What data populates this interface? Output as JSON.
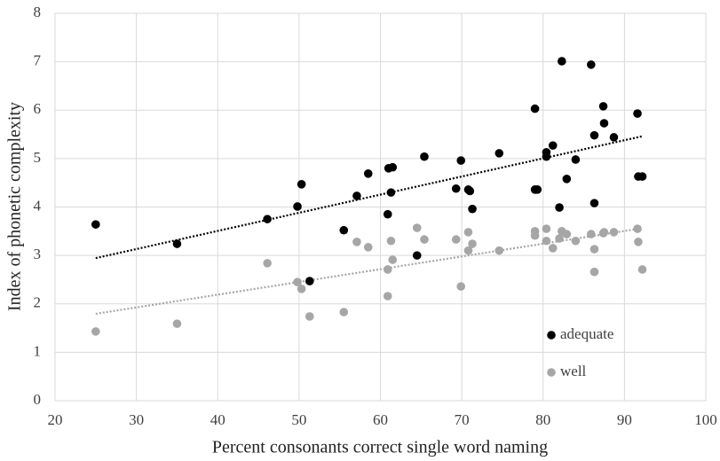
{
  "chart_data": {
    "type": "scatter",
    "x_label": "Percent consonants correct single word naming",
    "y_label": "Index of phonetic complexity",
    "xlim": [
      20,
      100
    ],
    "xticks": [
      20,
      30,
      40,
      50,
      60,
      70,
      80,
      90,
      100
    ],
    "ylim": [
      0,
      8
    ],
    "yticks": [
      0,
      1,
      2,
      3,
      4,
      5,
      6,
      7,
      8
    ],
    "grid": true,
    "legend": "lower right",
    "trendline": "linear",
    "series": [
      {
        "name": "adequate",
        "color": "#000000",
        "x": [
          25,
          35,
          46.1,
          49.8,
          50.3,
          51.3,
          55.5,
          57.1,
          58.5,
          60.9,
          61.3,
          61.5,
          61.0,
          64.5,
          65.4,
          69.3,
          69.9,
          70.8,
          71.0,
          71.3,
          74.6,
          79.0,
          79.0,
          79.3,
          80.4,
          80.4,
          81.2,
          82.0,
          82.3,
          82.9,
          84.0,
          85.9,
          86.3,
          86.3,
          87.4,
          87.5,
          88.7,
          91.6,
          91.7,
          92.2
        ],
        "values": [
          3.64,
          3.24,
          3.75,
          4.01,
          4.47,
          2.47,
          3.52,
          4.23,
          4.69,
          3.85,
          4.3,
          4.82,
          4.8,
          3.0,
          5.04,
          4.38,
          4.96,
          4.36,
          4.33,
          3.96,
          5.11,
          6.03,
          4.36,
          4.36,
          5.13,
          5.04,
          5.27,
          3.99,
          7.01,
          4.58,
          4.98,
          6.94,
          5.48,
          4.08,
          6.08,
          5.73,
          5.44,
          5.93,
          4.63,
          4.63
        ]
      },
      {
        "name": "well",
        "color": "#a6a6a6",
        "x": [
          25,
          35,
          46.1,
          49.8,
          50.3,
          51.3,
          55.5,
          57.1,
          58.5,
          60.9,
          60.9,
          61.3,
          61.5,
          64.5,
          65.4,
          69.3,
          69.9,
          70.8,
          70.8,
          71.3,
          74.6,
          79.0,
          79.0,
          80.4,
          80.4,
          81.2,
          82.0,
          82.3,
          82.9,
          84.0,
          85.9,
          86.3,
          86.3,
          87.4,
          87.5,
          88.7,
          91.6,
          91.7,
          92.2
        ],
        "values": [
          1.43,
          1.59,
          2.84,
          2.45,
          2.31,
          1.74,
          1.83,
          3.28,
          3.17,
          2.71,
          2.16,
          3.3,
          2.91,
          3.57,
          3.33,
          3.33,
          2.36,
          3.48,
          3.1,
          3.24,
          3.1,
          3.5,
          3.41,
          3.55,
          3.3,
          3.15,
          3.35,
          3.5,
          3.44,
          3.3,
          3.44,
          3.13,
          2.66,
          3.46,
          3.48,
          3.48,
          3.55,
          3.28,
          2.71
        ]
      }
    ]
  }
}
